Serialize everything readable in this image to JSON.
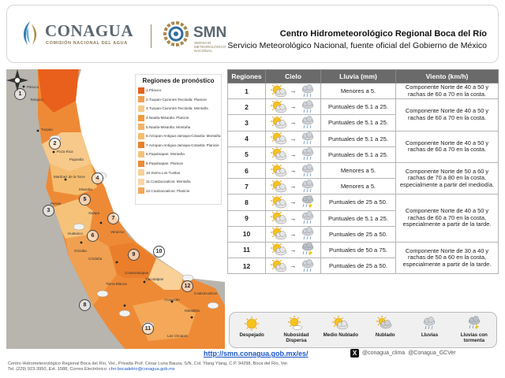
{
  "header": {
    "conagua_name": "CONAGUA",
    "conagua_sub": "COMISIÓN NACIONAL DEL AGUA",
    "smn_name": "SMN",
    "smn_sub": "SERVICIO METEOROLÓGICO NACIONAL",
    "title": "Centro Hidrometeorológico Regional Boca del Río",
    "subtitle": "Servicio Meteorológico Nacional, fuente oficial del Gobierno de México"
  },
  "map": {
    "legend_title": "Regiones de pronóstico",
    "legend_items": [
      {
        "label": "1.Pánuco",
        "color": "#e8601c"
      },
      {
        "label": "2.Tuxpan-Cazones-Tecolutla: Planicie",
        "color": "#f0a050"
      },
      {
        "label": "3.Tuxpan-Cazones-Tecolutla: Montaña",
        "color": "#f7c98a"
      },
      {
        "label": "4.Nautla-Misantla: Planicie",
        "color": "#f29a3a"
      },
      {
        "label": "5.Nautla-Misantla: Montaña",
        "color": "#f3b468"
      },
      {
        "label": "6.Actopan-Antigua-Jamapa-Cotaxtla: Montaña",
        "color": "#f5bd70"
      },
      {
        "label": "7.Actopan-Antigua-Jamapa-Cotaxtla: Planicie",
        "color": "#eb7e2a"
      },
      {
        "label": "8.Papaloapan: Montaña",
        "color": "#f6c27a"
      },
      {
        "label": "9.Papaloapan: Planicie",
        "color": "#ee8a36"
      },
      {
        "label": "10.Sierra Los Tuxtlas",
        "color": "#f8d098"
      },
      {
        "label": "11.Coatzacoalcos: Montaña",
        "color": "#fad7a4"
      },
      {
        "label": "12.Coatzacoalcos: Planicie",
        "color": "#f4a858"
      }
    ],
    "places": [
      "Pánuco",
      "Tampico",
      "Tuxpan",
      "Poza Rica",
      "Papantla",
      "Martínez de la Torre",
      "Misantla",
      "Xalapa",
      "Veracruz",
      "Orizaba",
      "Córdoba",
      "Cosamaloapan",
      "Tlacotalpan",
      "Acayucan",
      "Minatitlán",
      "Coatzacoalcos",
      "Las Choapas",
      "Tierra Blanca",
      "Perote",
      "Huatusco"
    ]
  },
  "table": {
    "headers": [
      "Regiones",
      "Cielo",
      "Lluvia (mm)",
      "Viento (km/h)"
    ],
    "rows": [
      {
        "region": "1",
        "lluvia": "Menores a 5.",
        "from": "medio-nublado",
        "to": "lluvias"
      },
      {
        "region": "2",
        "lluvia": "Puntuales de 5.1 a 25.",
        "from": "medio-nublado",
        "to": "lluvias"
      },
      {
        "region": "3",
        "lluvia": "Puntuales de 5.1 a 25.",
        "from": "medio-nublado",
        "to": "lluvias"
      },
      {
        "region": "4",
        "lluvia": "Puntuales de 5.1 a 25.",
        "from": "medio-nublado",
        "to": "lluvias"
      },
      {
        "region": "5",
        "lluvia": "Puntuales de 5.1 a 25.",
        "from": "medio-nublado",
        "to": "lluvias"
      },
      {
        "region": "6",
        "lluvia": "Menores a 5.",
        "from": "medio-nublado",
        "to": "lluvias"
      },
      {
        "region": "7",
        "lluvia": "Menores a 5.",
        "from": "medio-nublado",
        "to": "lluvias"
      },
      {
        "region": "8",
        "lluvia": "Puntuales de 25 a 50.",
        "from": "medio-nublado",
        "to": "tormenta"
      },
      {
        "region": "9",
        "lluvia": "Puntuales de 5.1 a 25.",
        "from": "medio-nublado",
        "to": "lluvias"
      },
      {
        "region": "10",
        "lluvia": "Puntuales de 25 a 50.",
        "from": "medio-nublado",
        "to": "lluvias"
      },
      {
        "region": "11",
        "lluvia": "Puntuales de 50 a 75.",
        "from": "medio-nublado",
        "to": "tormenta"
      },
      {
        "region": "12",
        "lluvia": "Puntuales de 25 a 50.",
        "from": "medio-nublado",
        "to": "lluvias"
      }
    ],
    "viento": [
      {
        "text": "Componente Norte de 40 a 50 y rachas de 60 a 70 en la costa.",
        "rows": 1
      },
      {
        "text": "Componente Norte de 40 a 50 y rachas de 60 a 70 en la costa.",
        "rows": 2
      },
      {
        "text": "Componente Norte de 40 a 50 y rachas de 60 a 70 en la costa.",
        "rows": 2
      },
      {
        "text": "Componente Norte de 50 a 60 y rachas de 70 a 80 en la costa, especialmente a partir del mediodía.",
        "rows": 2
      },
      {
        "text": "Componente Norte de 40 a 50 y rachas de 60 a 70 en la costa, especialmente a partir de la tarde.",
        "rows": 3
      },
      {
        "text": "Componente Norte de 30 a 40 y rachas de 50 a 60 en la costa, especialmente a partir de la tarde.",
        "rows": 2
      }
    ]
  },
  "sky_legend": [
    {
      "icon": "despejado",
      "label": "Despejado"
    },
    {
      "icon": "nubosidad-dispersa",
      "label": "Nubosidad Dispersa"
    },
    {
      "icon": "medio-nublado",
      "label": "Medio Nublado"
    },
    {
      "icon": "nublado",
      "label": "Nublado"
    },
    {
      "icon": "lluvias",
      "label": "Lluvias"
    },
    {
      "icon": "tormenta",
      "label": "Lluvias con tormenta"
    }
  ],
  "footer": {
    "url": "http://smn.conagua.gob.mx/es/",
    "x_handle1": "@conagua_clima",
    "x_handle2": "@Conagua_GCVer",
    "address": "Centro Hidrometeorológico Regional Boca del Río, Ver., Privada Prof. César Luna Bauza, S/N, Col. Ylang Ylang, C.P. 94298, Boca del Río, Ver.",
    "phone": "Tel. (229) 923-3950, Ext. 1588, Correo Electrónico:",
    "email": "chrr.bocadelrio@conagua.gob.mx"
  }
}
